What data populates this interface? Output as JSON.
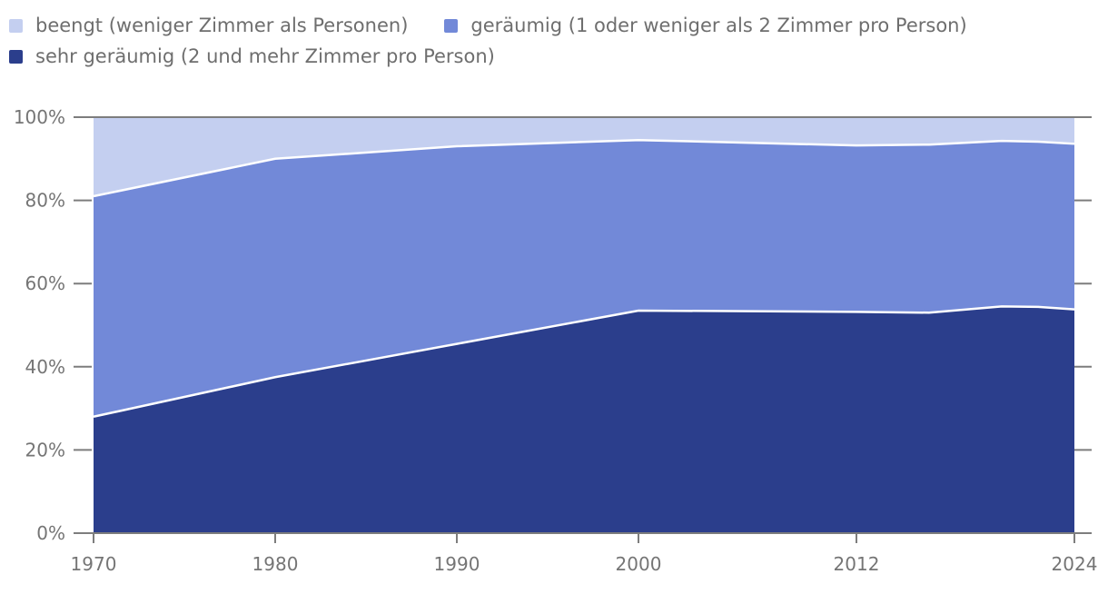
{
  "colors": {
    "background": "#ffffff",
    "axis_line": "#7d7d7d",
    "axis_label": "#757575",
    "legend_text": "#6e6e6e",
    "series_boundary_stroke": "#ffffff"
  },
  "chart_data": {
    "type": "area",
    "stacked": true,
    "percent_stacked": true,
    "title": "",
    "xlabel": "",
    "ylabel": "",
    "legend_position": "top",
    "grid": false,
    "xlim": [
      1970,
      2024
    ],
    "ylim": [
      0,
      100
    ],
    "x": [
      1970,
      1980,
      1990,
      2000,
      2012,
      2016,
      2020,
      2022,
      2024
    ],
    "series": [
      {
        "name": "beengt (weniger Zimmer als Personen)",
        "color": "#c4cff0",
        "values": [
          19,
          10,
          7,
          5.5,
          6.8,
          6.6,
          5.7,
          5.9,
          6.4
        ]
      },
      {
        "name": "geräumig (1 oder weniger als 2 Zimmer pro Person)",
        "color": "#7289d8",
        "values": [
          53,
          52.5,
          47.5,
          41,
          40.0,
          40.4,
          39.8,
          39.7,
          39.8
        ]
      },
      {
        "name": "sehr geräumig (2 und mehr Zimmer pro Person)",
        "color": "#2b3e8c",
        "values": [
          28,
          37.5,
          45.5,
          53.5,
          53.2,
          53.0,
          54.5,
          54.4,
          53.8
        ]
      }
    ],
    "stack_order_bottom_to_top": [
      2,
      1,
      0
    ],
    "x_tick_years": [
      1970,
      1980,
      1990,
      2000,
      2012,
      2024
    ],
    "x_tick_labels": [
      "1970",
      "1980",
      "1990",
      "2000",
      "2012",
      "2024"
    ],
    "y_tick_values": [
      0,
      20,
      40,
      60,
      80,
      100
    ],
    "y_tick_labels": [
      "0%",
      "20%",
      "40%",
      "60%",
      "80%",
      "100%"
    ]
  }
}
